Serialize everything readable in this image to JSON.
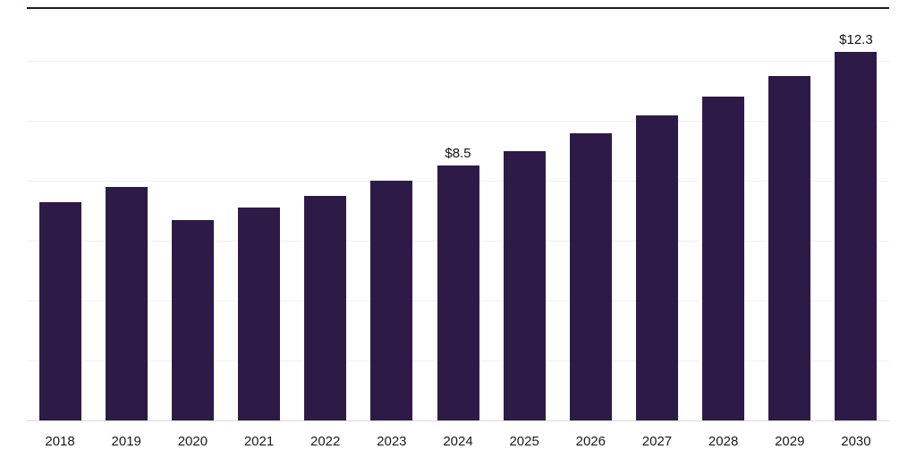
{
  "chart_data": {
    "type": "bar",
    "title": "",
    "xlabel": "",
    "ylabel": "",
    "categories": [
      "2018",
      "2019",
      "2020",
      "2021",
      "2022",
      "2023",
      "2024",
      "2025",
      "2026",
      "2027",
      "2028",
      "2029",
      "2030"
    ],
    "values": [
      7.3,
      7.8,
      6.7,
      7.1,
      7.5,
      8.0,
      8.5,
      9.0,
      9.6,
      10.2,
      10.8,
      11.5,
      12.3
    ],
    "annotations": [
      {
        "category": "2024",
        "text": "$8.5"
      },
      {
        "category": "2030",
        "text": "$12.3"
      }
    ],
    "ylim": [
      0,
      13.8
    ],
    "grid_step": 2,
    "grid": true,
    "legend": false,
    "bar_color": "#2e1a47"
  },
  "colors": {
    "bar": "#2e1a47",
    "grid": "#f1eff3",
    "axis": "#d9d9d9",
    "top_border": "#241430",
    "tick_label": "#1a1a1a",
    "data_label": "#111111",
    "background": "#ffffff"
  }
}
